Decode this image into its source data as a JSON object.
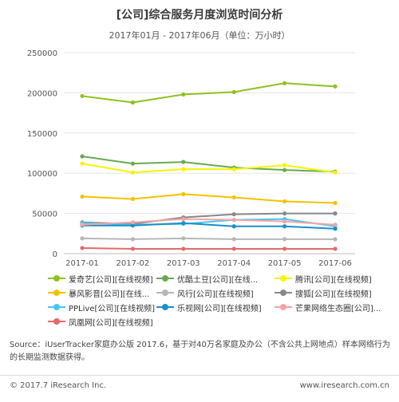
{
  "chart_data": {
    "type": "line",
    "title": "[公司]综合服务月度浏览时间分析",
    "subtitle": "2017年01月 - 2017年06月（单位：万小时）",
    "categories": [
      "2017-01",
      "2017-02",
      "2017-03",
      "2017-04",
      "2017-05",
      "2017-06"
    ],
    "ylim": [
      0,
      250000
    ],
    "yticks": [
      0,
      50000,
      100000,
      150000,
      200000,
      250000
    ],
    "ytick_labels": [
      "0",
      "50000",
      "100000",
      "150000",
      "200000",
      "250000"
    ],
    "grid": true,
    "legend_position": "bottom",
    "series": [
      {
        "name": "爱奇艺[公司][在线视频]",
        "color": "#8dc21f",
        "values": [
          196000,
          188000,
          198000,
          201000,
          212000,
          208000
        ]
      },
      {
        "name": "优酷土豆[公司][在线...",
        "color": "#6aa84f",
        "values": [
          121000,
          112000,
          114000,
          107000,
          104000,
          102000
        ]
      },
      {
        "name": "腾讯[公司][在线视频]",
        "color": "#f5f500",
        "values": [
          112000,
          101000,
          105000,
          105000,
          110000,
          101000
        ]
      },
      {
        "name": "暴风影音[公司][在线...",
        "color": "#f2c300",
        "values": [
          71000,
          68000,
          74000,
          70000,
          65000,
          63000
        ]
      },
      {
        "name": "风行[公司][在线视频]",
        "color": "#b7b7b7",
        "values": [
          19000,
          18000,
          19000,
          18000,
          18000,
          18000
        ]
      },
      {
        "name": "搜狐[公司][在线视频]",
        "color": "#888888",
        "values": [
          39000,
          37000,
          45000,
          49000,
          50000,
          50000
        ]
      },
      {
        "name": "PPLive[公司][在线视频]",
        "color": "#44c8f0",
        "values": [
          38000,
          36000,
          37000,
          42000,
          43000,
          34000
        ]
      },
      {
        "name": "乐视网[公司][在线视频]",
        "color": "#1a8fc9",
        "values": [
          35000,
          35000,
          38000,
          34000,
          34000,
          31000
        ]
      },
      {
        "name": "芒果网络生态圈[公司]...",
        "color": "#f4a4a4",
        "values": [
          36000,
          39000,
          43000,
          42000,
          40000,
          36000
        ]
      },
      {
        "name": "凤凰网[公司][在线视频]",
        "color": "#e46a6a",
        "values": [
          7000,
          6000,
          6000,
          6000,
          6000,
          6000
        ]
      }
    ]
  },
  "source_text": "Source：iUserTracker家庭办公版 2017.6，基于对40万名家庭及办公（不含公共上网地点）样本网络行为的长期监测数据获得。",
  "footer": {
    "copyright": "© 2017.7 iResearch Inc.",
    "website": "www.iresearch.com.cn"
  }
}
